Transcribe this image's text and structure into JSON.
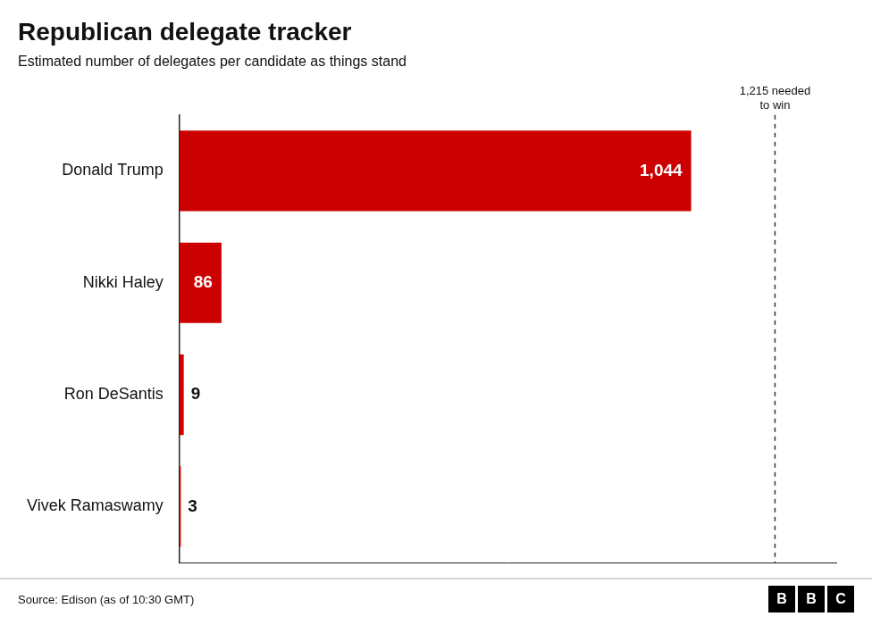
{
  "chart_data": {
    "type": "bar",
    "orientation": "horizontal",
    "title": "Republican delegate tracker",
    "subtitle": "Estimated number of delegates per candidate as things stand",
    "categories": [
      "Donald Trump",
      "Nikki Haley",
      "Ron DeSantis",
      "Vivek Ramaswamy"
    ],
    "values": [
      1044,
      86,
      9,
      3
    ],
    "value_labels": [
      "1,044",
      "86",
      "9",
      "3"
    ],
    "color": "#cc0000",
    "xlim": [
      0,
      1340
    ],
    "data_labels": true,
    "tick_labels": "y",
    "grid": false,
    "annotations": [
      {
        "type": "line",
        "x": 1215,
        "text": "1,215 needed\nto win"
      },
      {
        "type": "text",
        "text": "Source: Edison (as of 10:30 GMT)"
      },
      {
        "type": "logo",
        "text": "BBC"
      }
    ]
  }
}
